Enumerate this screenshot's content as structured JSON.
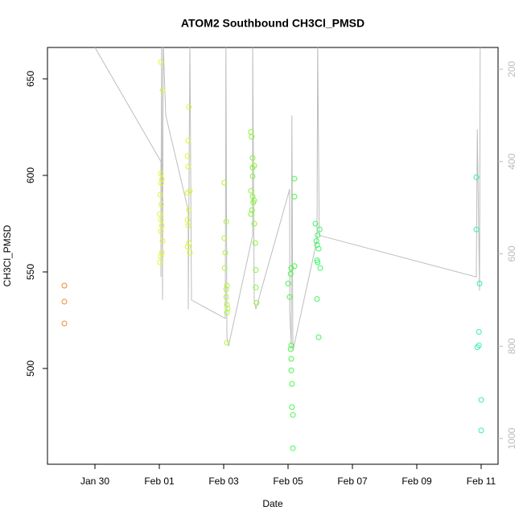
{
  "chart_data": {
    "type": "scatter",
    "title": "ATOM2 Southbound CH3Cl_PMSD",
    "x_label": "Date",
    "y_label": "CH3Cl_PMSD",
    "xlim": [
      28.525,
      42.525
    ],
    "xticks": [
      {
        "value": 30,
        "label": "Jan 30"
      },
      {
        "value": 32,
        "label": "Feb 01"
      },
      {
        "value": 34,
        "label": "Feb 03"
      },
      {
        "value": 36,
        "label": "Feb 05"
      },
      {
        "value": 38,
        "label": "Feb 07"
      },
      {
        "value": 40,
        "label": "Feb 09"
      },
      {
        "value": 42,
        "label": "Feb 11"
      }
    ],
    "ylim": [
      450.4,
      666.25
    ],
    "yticks": [
      500,
      550,
      600,
      650
    ],
    "y2lim": [
      1055.7,
      153
    ],
    "y2ticks": [
      200,
      400,
      600,
      800,
      1000
    ],
    "series": [
      {
        "color": "#ee8a2a",
        "x": [
          29.05,
          29.05,
          29.05
        ],
        "values": [
          542.9,
          534.6,
          523.3
        ]
      },
      {
        "color": "#e4f53a",
        "x": [
          32.05,
          32.1,
          32.05,
          32.08,
          32.03,
          32.06,
          32.02,
          32.05,
          32.08,
          32.05,
          32.1,
          32.05,
          32.02,
          32.08,
          32.06
        ],
        "values": [
          658.7,
          644,
          601,
          598,
          590,
          585,
          580,
          577,
          574,
          571,
          566,
          558,
          555,
          560,
          596
        ]
      },
      {
        "color": "#d4f83c",
        "x": [
          32.92,
          32.9,
          32.88,
          32.9,
          32.95,
          32.88,
          32.92,
          32.88,
          32.9,
          32.92,
          32.88,
          32.95
        ],
        "values": [
          635.4,
          618,
          610,
          604.6,
          592,
          591,
          582,
          577,
          574,
          565,
          563,
          560
        ]
      },
      {
        "color": "#b2f540",
        "x": [
          34.02,
          34.08,
          34.02,
          34.05,
          34.03,
          34.1,
          34.08,
          34.08,
          34.1,
          34.12,
          34.1,
          34.1
        ],
        "values": [
          596.2,
          576,
          567.5,
          560,
          552,
          542.9,
          541,
          537,
          533,
          531,
          529,
          513.3
        ]
      },
      {
        "color": "#88f53a",
        "x": [
          34.85,
          34.87,
          34.9,
          34.95,
          34.9,
          34.9,
          34.85,
          34.9,
          34.95,
          34.92,
          34.88,
          34.85,
          34.95,
          34.98,
          35.0,
          35.0,
          35.02
        ],
        "values": [
          622.5,
          620,
          609,
          605,
          604,
          599.6,
          592,
          589,
          587,
          586,
          582,
          580,
          575,
          565,
          551,
          542,
          534
        ]
      },
      {
        "color": "#4cf54a",
        "x": [
          36.2,
          36.2,
          36.2,
          36.1,
          36.08,
          36.0,
          36.05,
          36.1,
          36.08,
          36.1,
          36.1,
          36.12,
          36.12,
          36.15,
          36.15
        ],
        "values": [
          598.3,
          589,
          553,
          552,
          549,
          544,
          537,
          512,
          510,
          505,
          499,
          492,
          480,
          476,
          458.7
        ]
      },
      {
        "color": "#3cf564",
        "x": [
          36.85,
          36.98,
          36.92,
          36.88,
          36.9,
          36.95,
          36.9,
          36.92,
          37.0,
          36.9,
          36.95
        ],
        "values": [
          575,
          572,
          569,
          566,
          564,
          562,
          556,
          555,
          552,
          536,
          516.2
        ]
      },
      {
        "color": "#33f0a8",
        "x": [
          41.85,
          41.85,
          41.95,
          41.93,
          41.93,
          41.88,
          42.0,
          42.0
        ],
        "values": [
          599,
          572,
          544,
          519,
          512,
          511,
          483.7,
          467.9
        ]
      },
      {
        "color": "#bdbdbd",
        "axis": "y2",
        "line": true,
        "x": [
          30.0,
          32.05,
          32.05,
          32.07,
          32.1,
          32.12,
          32.2,
          32.9,
          32.9,
          32.95,
          33.0,
          34.05,
          34.07,
          34.1,
          34.15,
          34.9,
          34.9,
          34.95,
          35.0,
          36.05,
          36.05,
          36.1,
          36.12,
          36.15,
          36.9,
          36.92,
          36.97,
          41.85,
          41.88,
          41.95,
          41.97
        ],
        "values": [
          153,
          400,
          650,
          140,
          700,
          140,
          300,
          506,
          720,
          140,
          700,
          740,
          140,
          780,
          800,
          560,
          140,
          700,
          720,
          460,
          720,
          800,
          300,
          810,
          570,
          140,
          560,
          650,
          330,
          680,
          140
        ]
      }
    ]
  }
}
